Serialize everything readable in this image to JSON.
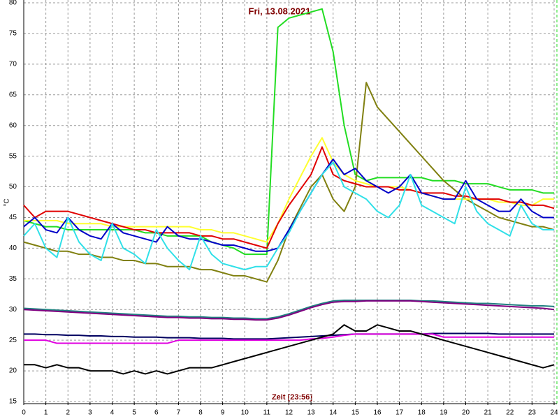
{
  "chart_data": {
    "type": "line",
    "title": "Fri, 13.08.2021",
    "x_label": "Zeit [23:56]",
    "y_label": "°C",
    "x": [
      0,
      0.5,
      1,
      1.5,
      2,
      2.5,
      3,
      3.5,
      4,
      4.5,
      5,
      5.5,
      6,
      6.5,
      7,
      7.5,
      8,
      8.5,
      9,
      9.5,
      10,
      10.5,
      11,
      11.5,
      12,
      12.5,
      13,
      13.5,
      14,
      14.5,
      15,
      15.5,
      16,
      16.5,
      17,
      17.5,
      18,
      18.5,
      19,
      19.5,
      20,
      20.5,
      21,
      21.5,
      22,
      22.5,
      23,
      23.5,
      24
    ],
    "xlim": [
      0,
      24
    ],
    "xticks": [
      0,
      1,
      2,
      3,
      4,
      5,
      6,
      7,
      8,
      9,
      10,
      11,
      12,
      13,
      14,
      15,
      16,
      17,
      18,
      19,
      20,
      21,
      22,
      23,
      24
    ],
    "ylim": [
      15,
      80
    ],
    "yticks": [
      15,
      20,
      25,
      30,
      35,
      40,
      45,
      50,
      55,
      60,
      65,
      70,
      75,
      80
    ],
    "grid": true,
    "series": [
      {
        "color": "#22dd22",
        "values": [
          44.5,
          44,
          43.5,
          43.5,
          43,
          43,
          43,
          43,
          43,
          43,
          43,
          42.5,
          42.5,
          42,
          42,
          42,
          42,
          41,
          40.5,
          40,
          39,
          39,
          39,
          76,
          77.5,
          78,
          78.5,
          79,
          72,
          60,
          52,
          51,
          51.5,
          51.5,
          51.5,
          51.5,
          51.5,
          51,
          51,
          51,
          50.5,
          50.5,
          50.5,
          50,
          49.5,
          49.5,
          49.5,
          49,
          49
        ]
      },
      {
        "color": "#808010",
        "values": [
          41,
          40.5,
          40,
          39.5,
          39.5,
          39,
          39,
          38.5,
          38.5,
          38,
          38,
          37.5,
          37.5,
          37,
          37,
          37,
          36.5,
          36.5,
          36,
          35.5,
          35.5,
          35,
          34.5,
          38,
          43,
          46.5,
          50,
          52,
          48,
          46,
          50,
          67,
          63,
          61,
          59,
          57,
          55,
          53,
          51,
          49.5,
          48,
          47,
          46,
          45,
          44.5,
          44,
          43.5,
          43.5,
          43
        ]
      },
      {
        "color": "#ffff30",
        "values": [
          44.5,
          44.5,
          44.5,
          44.5,
          44,
          44,
          44,
          44,
          43.5,
          43.5,
          43.5,
          43.5,
          43.5,
          43.5,
          43.5,
          43.5,
          43,
          43,
          42.5,
          42.5,
          42,
          41.5,
          41,
          44,
          48,
          51.5,
          55,
          58,
          54,
          52,
          51,
          50.5,
          50,
          50,
          50,
          49.5,
          49,
          48.5,
          48,
          48,
          48,
          48,
          48,
          47.5,
          47.5,
          47,
          47,
          48,
          48
        ]
      },
      {
        "color": "#e00000",
        "values": [
          47,
          45,
          46,
          46,
          46,
          45.5,
          45,
          44.5,
          44,
          43.5,
          43,
          43,
          42.5,
          42.5,
          42.5,
          42.5,
          42,
          42,
          41.5,
          41.5,
          41,
          40.5,
          40,
          44,
          47,
          49.5,
          52,
          56.5,
          52,
          51,
          50.5,
          50,
          50,
          50,
          49.5,
          49.5,
          49,
          49,
          49,
          48.5,
          48.5,
          48,
          48,
          48,
          47.5,
          47.5,
          47,
          47,
          46.5
        ]
      },
      {
        "color": "#0000c8",
        "values": [
          43.5,
          45,
          43,
          42.5,
          45,
          43,
          42,
          41.5,
          44,
          42.5,
          42,
          41.5,
          41,
          43.5,
          42,
          41.5,
          41.5,
          41,
          40.5,
          40.5,
          40,
          39.5,
          39.5,
          40,
          43,
          46,
          49,
          52,
          54.5,
          52,
          53,
          51,
          50,
          49,
          50,
          52,
          49,
          48.5,
          48,
          48,
          51,
          48,
          47,
          46,
          46,
          48,
          46,
          45,
          45
        ]
      },
      {
        "color": "#30e0e8",
        "values": [
          42,
          44,
          40,
          38.5,
          45,
          41,
          39,
          38,
          44,
          40,
          39,
          37.5,
          43,
          40,
          38,
          36.5,
          42,
          39,
          37.5,
          37,
          36.5,
          37,
          37,
          40,
          42.5,
          46,
          49,
          52,
          54,
          50,
          49,
          48,
          46,
          45,
          47,
          52,
          47,
          46,
          45,
          44,
          50,
          46,
          44,
          43,
          42,
          47,
          44,
          43,
          43
        ]
      },
      {
        "color": "#208080",
        "values": [
          30.2,
          30.1,
          30,
          29.9,
          29.8,
          29.7,
          29.6,
          29.5,
          29.4,
          29.3,
          29.2,
          29.1,
          29,
          28.9,
          28.9,
          28.8,
          28.8,
          28.7,
          28.7,
          28.6,
          28.6,
          28.5,
          28.5,
          28.8,
          29.3,
          29.9,
          30.5,
          31,
          31.4,
          31.5,
          31.5,
          31.5,
          31.5,
          31.5,
          31.5,
          31.5,
          31.4,
          31.4,
          31.3,
          31.2,
          31.1,
          31,
          31,
          30.9,
          30.8,
          30.7,
          30.6,
          30.6,
          30.5
        ]
      },
      {
        "color": "#800080",
        "values": [
          30,
          29.9,
          29.8,
          29.7,
          29.6,
          29.5,
          29.4,
          29.3,
          29.2,
          29.1,
          29,
          28.9,
          28.8,
          28.7,
          28.7,
          28.6,
          28.6,
          28.5,
          28.5,
          28.4,
          28.4,
          28.3,
          28.3,
          28.6,
          29.1,
          29.7,
          30.3,
          30.8,
          31.2,
          31.3,
          31.3,
          31.4,
          31.4,
          31.4,
          31.4,
          31.4,
          31.3,
          31.2,
          31.1,
          31,
          30.9,
          30.8,
          30.7,
          30.6,
          30.5,
          30.4,
          30.3,
          30.2,
          30
        ]
      },
      {
        "color": "#000060",
        "values": [
          26,
          26,
          25.9,
          25.9,
          25.8,
          25.8,
          25.7,
          25.7,
          25.6,
          25.6,
          25.5,
          25.5,
          25.5,
          25.4,
          25.4,
          25.4,
          25.3,
          25.3,
          25.3,
          25.2,
          25.2,
          25.2,
          25.2,
          25.3,
          25.4,
          25.5,
          25.6,
          25.7,
          25.8,
          25.9,
          26,
          26,
          26,
          26,
          26,
          26,
          26,
          26.1,
          26.1,
          26.1,
          26.1,
          26.1,
          26.1,
          26,
          26,
          26,
          26,
          26,
          26
        ]
      },
      {
        "color": "#e000e0",
        "values": [
          25,
          25,
          25,
          24.5,
          24.5,
          24.5,
          24.5,
          24.5,
          24.5,
          24.5,
          24.5,
          24.5,
          24.5,
          24.5,
          25,
          25,
          25,
          25,
          25,
          25,
          25,
          25,
          25,
          25,
          25,
          25,
          25.2,
          25.3,
          25.5,
          25.8,
          26,
          26,
          26,
          26,
          26,
          26,
          26,
          26,
          25.5,
          25.5,
          25.5,
          25.5,
          25.5,
          25.5,
          25.5,
          25.5,
          25.5,
          25.5,
          25.5
        ]
      },
      {
        "color": "#000000",
        "values": [
          21,
          21,
          20.5,
          21,
          20.5,
          20.5,
          20,
          20,
          20,
          19.5,
          20,
          19.5,
          20,
          19.5,
          20,
          20.5,
          20.5,
          20.5,
          21,
          21.5,
          22,
          22.5,
          23,
          23.5,
          24,
          24.5,
          25,
          25.5,
          26,
          27.5,
          26.5,
          26.5,
          27.5,
          27,
          26.5,
          26.5,
          26,
          25.5,
          25,
          24.5,
          24,
          23.5,
          23,
          22.5,
          22,
          21.5,
          21,
          20.5,
          21
        ]
      }
    ]
  }
}
